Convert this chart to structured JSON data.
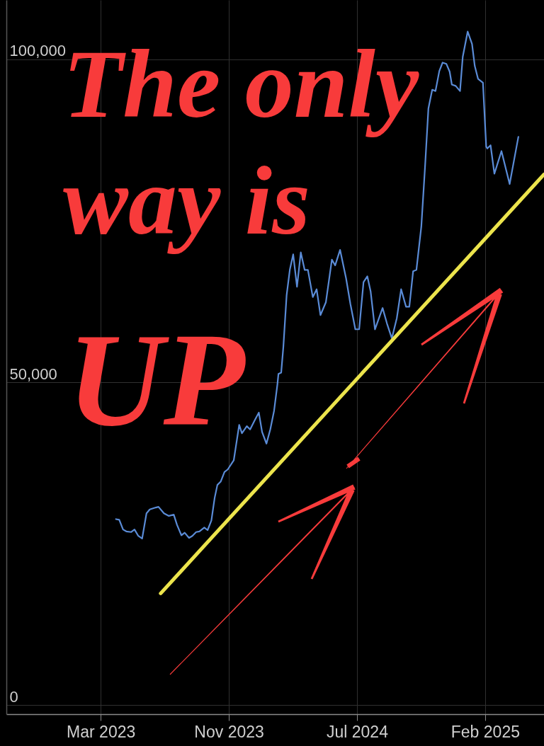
{
  "chart_data": {
    "type": "line",
    "annotations": [
      "The only",
      "way is",
      "UP"
    ],
    "x": [
      "2023-04-17",
      "2023-04-23",
      "2023-04-30",
      "2023-05-06",
      "2023-05-15",
      "2023-05-21",
      "2023-05-28",
      "2023-06-04",
      "2023-06-12",
      "2023-06-18",
      "2023-06-29",
      "2023-07-04",
      "2023-07-14",
      "2023-07-23",
      "2023-08-01",
      "2023-08-07",
      "2023-08-15",
      "2023-08-21",
      "2023-08-29",
      "2023-09-04",
      "2023-09-11",
      "2023-09-17",
      "2023-09-26",
      "2023-10-02",
      "2023-10-09",
      "2023-10-15",
      "2023-10-20",
      "2023-10-26",
      "2023-11-02",
      "2023-11-08",
      "2023-11-19",
      "2023-11-23",
      "2023-11-29",
      "2023-12-04",
      "2023-12-13",
      "2023-12-19",
      "2023-12-28",
      "2024-01-04",
      "2024-01-10",
      "2024-01-18",
      "2024-01-25",
      "2024-02-01",
      "2024-02-07",
      "2024-02-09",
      "2024-02-14",
      "2024-02-18",
      "2024-02-24",
      "2024-03-01",
      "2024-03-07",
      "2024-03-14",
      "2024-03-21",
      "2024-03-28",
      "2024-04-03",
      "2024-04-12",
      "2024-04-19",
      "2024-04-26",
      "2024-05-06",
      "2024-05-17",
      "2024-05-23",
      "2024-06-01",
      "2024-06-12",
      "2024-06-20",
      "2024-06-29",
      "2024-07-06",
      "2024-07-14",
      "2024-07-21",
      "2024-07-27",
      "2024-08-04",
      "2024-08-18",
      "2024-08-26",
      "2024-09-04",
      "2024-09-13",
      "2024-09-21",
      "2024-09-30",
      "2024-10-06",
      "2024-10-13",
      "2024-10-19",
      "2024-10-28",
      "2024-11-04",
      "2024-11-10",
      "2024-11-17",
      "2024-11-23",
      "2024-11-30",
      "2024-12-06",
      "2024-12-13",
      "2024-12-19",
      "2024-12-23",
      "2024-12-30",
      "2025-01-07",
      "2025-01-12",
      "2025-01-21",
      "2025-01-29",
      "2025-02-03",
      "2025-02-09",
      "2025-02-18",
      "2025-02-24",
      "2025-02-26",
      "2025-03-04",
      "2025-03-11",
      "2025-03-24",
      "2025-04-08",
      "2025-04-24"
    ],
    "series": [
      {
        "color": "#5a8bd6",
        "values": [
          28800,
          28700,
          27200,
          26900,
          26800,
          27200,
          26200,
          25800,
          29700,
          30300,
          30600,
          30700,
          29700,
          29300,
          29500,
          27900,
          26300,
          26700,
          25900,
          26200,
          26800,
          26900,
          27500,
          27100,
          28600,
          32100,
          34100,
          34600,
          36100,
          36500,
          37900,
          40100,
          43400,
          42100,
          43200,
          42700,
          44200,
          45300,
          42300,
          40500,
          42700,
          45600,
          49600,
          51300,
          51500,
          55500,
          63500,
          67500,
          69800,
          64800,
          70100,
          67400,
          67400,
          63200,
          64400,
          60400,
          62400,
          69000,
          68100,
          70500,
          66100,
          62100,
          58200,
          58200,
          65500,
          66400,
          64100,
          58200,
          61500,
          59100,
          56800,
          59900,
          64400,
          61700,
          61700,
          67200,
          67400,
          74100,
          83600,
          92400,
          95300,
          95100,
          98200,
          99500,
          99300,
          98100,
          96100,
          95900,
          95100,
          100400,
          104300,
          102400,
          99000,
          97000,
          96400,
          86500,
          86200,
          86700,
          82300,
          85800,
          80700,
          88000
        ]
      },
      {
        "type": "line",
        "color": "#ece44c",
        "x": [
          "2023-07-08",
          "2025-06-10"
        ],
        "values": [
          17300,
          82200
        ]
      }
    ],
    "xlim": [
      "2022-09-28",
      "2025-06-10"
    ],
    "xticks": [
      {
        "value": "2023-03-20",
        "label": "Mar 2023"
      },
      {
        "value": "2023-11-10",
        "label": "Nov 2023"
      },
      {
        "value": "2024-07-02",
        "label": "Jul 2024"
      },
      {
        "value": "2025-02-22",
        "label": "Feb 2025"
      }
    ],
    "ylim": [
      -1400,
      109200
    ],
    "yticks": [
      0,
      {
        "value": 50000,
        "label": "50,000"
      },
      {
        "value": 100000,
        "label": "100,000"
      }
    ],
    "grid": true,
    "line_style": "solid"
  }
}
